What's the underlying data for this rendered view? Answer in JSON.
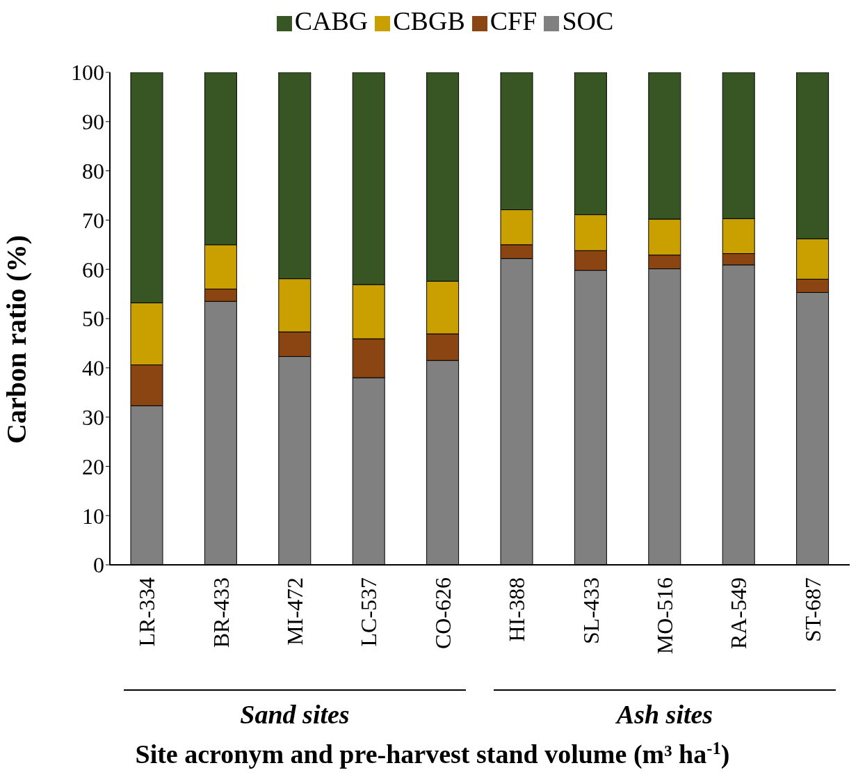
{
  "chart_data": {
    "type": "bar",
    "stacked": true,
    "ylabel": "Carbon ratio (%)",
    "xlabel": "Site acronym and pre-harvest stand volume (m³ ha$^{-1}$)",
    "categories": [
      "LR-334",
      "BR-433",
      "MI-472",
      "LC-537",
      "CO-626",
      "HI-388",
      "SL-433",
      "MO-516",
      "RA-549",
      "ST-687"
    ],
    "series": [
      {
        "name": "SOC",
        "color": "#808080",
        "values": [
          32.3,
          53.5,
          42.3,
          38.0,
          41.5,
          62.2,
          59.8,
          60.1,
          60.9,
          55.3
        ]
      },
      {
        "name": "CFF",
        "color": "#8b4513",
        "values": [
          8.3,
          2.5,
          5.0,
          7.9,
          5.4,
          2.8,
          4.0,
          2.8,
          2.3,
          2.7
        ]
      },
      {
        "name": "CBGB",
        "color": "#c9a000",
        "values": [
          12.6,
          9.0,
          10.8,
          11.0,
          10.7,
          7.1,
          7.3,
          7.3,
          7.1,
          8.2
        ]
      },
      {
        "name": "CABG",
        "color": "#375623",
        "values": [
          46.8,
          35.0,
          41.9,
          43.1,
          42.4,
          27.9,
          28.9,
          29.8,
          29.7,
          33.8
        ]
      }
    ],
    "ylim": [
      0,
      100
    ],
    "yticks": [
      0,
      10,
      20,
      30,
      40,
      50,
      60,
      70,
      80,
      90,
      100
    ],
    "legend": "top",
    "grid": false,
    "annotations": [
      "Sand sites",
      "Ash sites"
    ]
  }
}
